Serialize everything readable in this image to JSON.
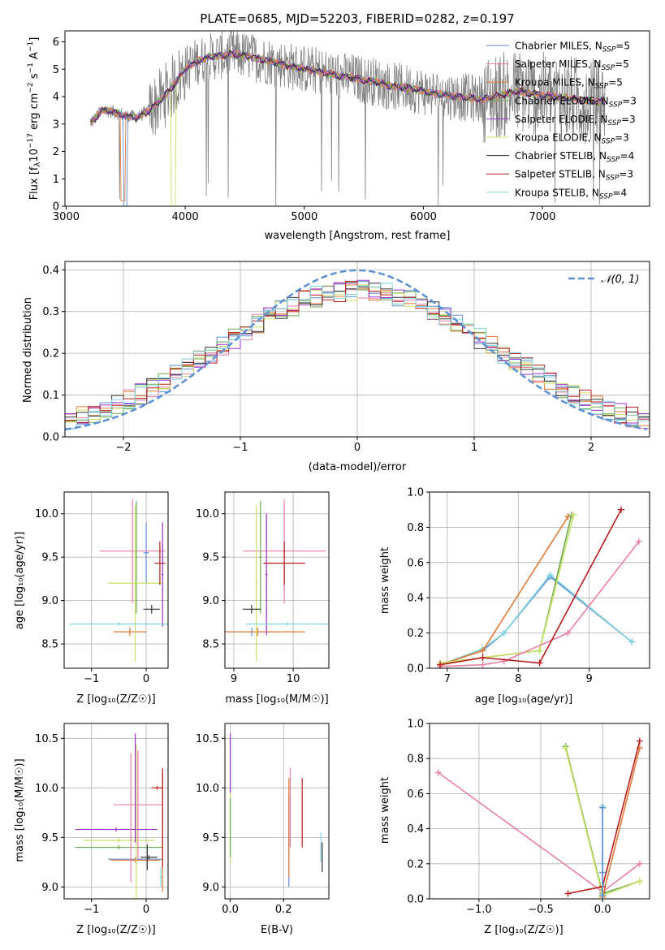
{
  "colors": {
    "chabrier_miles": "#5b8fd6",
    "salpeter_miles": "#e87fa8",
    "kroupa_miles": "#e07b39",
    "chabrier_elodie": "#6aa84f",
    "salpeter_elodie": "#9b30c9",
    "kroupa_elodie": "#c8e064",
    "chabrier_stelib": "#333333",
    "salpeter_stelib": "#b71c1c",
    "kroupa_stelib": "#7fd3dc",
    "data_spectrum": "#808080",
    "normal_curve": "#5b8fd6",
    "grid": "#b0b0b0"
  },
  "chart_data": [
    {
      "id": "spectrum",
      "type": "line",
      "title": "PLATE=0685, MJD=52203, FIBERID=0282, z=0.197",
      "xlabel": "wavelength [Angstrom, rest frame]",
      "ylabel_parts": [
        "Flux [f",
        "λ",
        "10",
        "−17",
        " erg cm",
        "−2",
        " s",
        "−1",
        " A",
        "−1",
        "]"
      ],
      "xlim": [
        2990,
        7900
      ],
      "ylim": [
        0,
        6.4
      ],
      "xticks": [
        "3000",
        "4000",
        "5000",
        "6000",
        "7000"
      ],
      "xtick_values": [
        3000,
        4000,
        5000,
        6000,
        7000
      ],
      "yticks": [
        "0",
        "1",
        "2",
        "3",
        "4",
        "5",
        "6"
      ],
      "ytick_values": [
        0,
        1,
        2,
        3,
        4,
        5,
        6
      ],
      "grid": false,
      "legend_position": "upper-right",
      "legend": [
        {
          "label": "Chabrier MILES, N",
          "sub": "SSP",
          "suffix": "=5"
        },
        {
          "label": "Salpeter MILES, N",
          "sub": "SSP",
          "suffix": "=5"
        },
        {
          "label": "Kroupa MILES, N",
          "sub": "SSP",
          "suffix": "=5"
        },
        {
          "label": "Chabrier ELODIE, N",
          "sub": "SSP",
          "suffix": "=3"
        },
        {
          "label": "Salpeter ELODIE, N",
          "sub": "SSP",
          "suffix": "=3"
        },
        {
          "label": "Kroupa ELODIE, N",
          "sub": "SSP",
          "suffix": "=3"
        },
        {
          "label": "Chabrier STELIB, N",
          "sub": "SSP",
          "suffix": "=4"
        },
        {
          "label": "Salpeter STELIB, N",
          "sub": "SSP",
          "suffix": "=3"
        },
        {
          "label": "Kroupa STELIB, N",
          "sub": "SSP",
          "suffix": "=4"
        }
      ],
      "continuum": {
        "x": [
          3200,
          3300,
          3400,
          3500,
          3600,
          3700,
          3800,
          3900,
          4000,
          4100,
          4200,
          4300,
          4400,
          4500,
          4600,
          4700,
          4800,
          4900,
          5000,
          5100,
          5200,
          5300,
          5400,
          5500,
          5600,
          5700,
          5800,
          5900,
          6000,
          6100,
          6200,
          6300,
          6400,
          6500,
          6600,
          6700,
          6800,
          6900,
          7000,
          7100,
          7200,
          7300,
          7400,
          7500
        ],
        "y": [
          3.0,
          3.5,
          3.45,
          3.3,
          3.25,
          3.5,
          3.9,
          4.4,
          5.0,
          5.3,
          5.45,
          5.5,
          5.55,
          5.5,
          5.4,
          5.3,
          5.2,
          5.1,
          5.0,
          4.95,
          4.85,
          4.75,
          4.7,
          4.6,
          4.55,
          4.4,
          4.35,
          4.3,
          4.2,
          4.1,
          4.05,
          4.0,
          3.95,
          3.9,
          4.0,
          4.1,
          4.2,
          4.1,
          4.05,
          4.0,
          3.95,
          3.9,
          3.85,
          3.8
        ]
      }
    },
    {
      "id": "residuals",
      "type": "line",
      "xlabel": "(data-model)/error",
      "ylabel": "Normed distribution",
      "xlim": [
        -2.5,
        2.5
      ],
      "ylim": [
        0,
        0.42
      ],
      "xticks": [
        "−2",
        "−1",
        "0",
        "1",
        "2"
      ],
      "xtick_values": [
        -2,
        -1,
        0,
        1,
        2
      ],
      "yticks": [
        "0.0",
        "0.1",
        "0.2",
        "0.3",
        "0.4"
      ],
      "ytick_values": [
        0,
        0.1,
        0.2,
        0.3,
        0.4
      ],
      "grid": true,
      "legend": "𝒩(0, 1)",
      "legend_position": "upper-right",
      "bin_width": 0.1
    },
    {
      "id": "age-vs-z",
      "type": "scatter",
      "xlabel": "Z [log₁₀(Z/Z☉)]",
      "ylabel": "age  [log₁₀(age/yr)]",
      "xlim": [
        -1.5,
        0.4
      ],
      "ylim": [
        8.22,
        10.25
      ],
      "xticks": [
        "−1",
        "0"
      ],
      "xtick_values": [
        -1,
        0
      ],
      "yticks": [
        "8.5",
        "9.0",
        "9.5",
        "10.0"
      ],
      "ytick_values": [
        8.5,
        9.0,
        9.5,
        10.0
      ],
      "grid": true,
      "points": [
        {
          "model": "chabrier_miles",
          "x": 0.0,
          "xerr": 0.05,
          "y": 9.55,
          "yerr": 0.35
        },
        {
          "model": "salpeter_miles",
          "x": -0.25,
          "xerr": 0.6,
          "y": 9.57,
          "yerr": 0.6
        },
        {
          "model": "kroupa_miles",
          "x": -0.3,
          "xerr": 0.3,
          "y": 8.64,
          "yerr": 0.05
        },
        {
          "model": "chabrier_elodie",
          "x": -0.18,
          "xerr": 0.02,
          "y": 9.5,
          "yerr": 0.65
        },
        {
          "model": "salpeter_elodie",
          "x": 0.3,
          "xerr": 0.02,
          "y": 9.3,
          "yerr": 0.6
        },
        {
          "model": "kroupa_elodie",
          "x": -0.2,
          "xerr": 0.5,
          "y": 9.2,
          "yerr": 0.9
        },
        {
          "model": "chabrier_stelib",
          "x": 0.1,
          "xerr": 0.15,
          "y": 8.9,
          "yerr": 0.05
        },
        {
          "model": "salpeter_stelib",
          "x": 0.25,
          "xerr": 0.1,
          "y": 9.43,
          "yerr": 0.25
        },
        {
          "model": "kroupa_stelib",
          "x": -0.5,
          "xerr": 0.9,
          "y": 8.73,
          "yerr": 0.02
        }
      ]
    },
    {
      "id": "age-vs-mass",
      "type": "scatter",
      "xlabel": "mass [log₁₀(M/M☉)]",
      "ylabel": "",
      "xlim": [
        8.85,
        10.6
      ],
      "ylim": [
        8.22,
        10.25
      ],
      "xticks": [
        "9",
        "10"
      ],
      "xtick_values": [
        9,
        10
      ],
      "yticks": [
        "8.5",
        "9.0",
        "9.5",
        "10.0"
      ],
      "ytick_values": [
        8.5,
        9.0,
        9.5,
        10.0
      ],
      "grid": true,
      "points": [
        {
          "model": "chabrier_miles",
          "x": 9.3,
          "xerr": 0.4,
          "y": 8.64,
          "yerr": 0.05
        },
        {
          "model": "salpeter_miles",
          "x": 9.85,
          "xerr": 0.7,
          "y": 9.57,
          "yerr": 0.6
        },
        {
          "model": "kroupa_miles",
          "x": 9.4,
          "xerr": 0.8,
          "y": 8.64,
          "yerr": 0.05
        },
        {
          "model": "chabrier_elodie",
          "x": 9.45,
          "xerr": 0.02,
          "y": 9.5,
          "yerr": 0.65
        },
        {
          "model": "salpeter_elodie",
          "x": 9.55,
          "xerr": 0.02,
          "y": 9.3,
          "yerr": 0.7
        },
        {
          "model": "kroupa_elodie",
          "x": 9.38,
          "xerr": 0.02,
          "y": 9.2,
          "yerr": 0.9
        },
        {
          "model": "chabrier_stelib",
          "x": 9.3,
          "xerr": 0.15,
          "y": 8.9,
          "yerr": 0.05
        },
        {
          "model": "salpeter_stelib",
          "x": 9.85,
          "xerr": 0.35,
          "y": 9.43,
          "yerr": 0.25
        },
        {
          "model": "kroupa_stelib",
          "x": 9.9,
          "xerr": 0.7,
          "y": 8.73,
          "yerr": 0.02
        }
      ]
    },
    {
      "id": "weight-vs-age",
      "type": "line",
      "xlabel": "age  [log₁₀(age/yr)]",
      "ylabel": "mass weight",
      "xlim": [
        6.75,
        9.85
      ],
      "ylim": [
        0,
        1.0
      ],
      "xticks": [
        "7",
        "8",
        "9"
      ],
      "xtick_values": [
        7,
        8,
        9
      ],
      "yticks": [
        "0.0",
        "0.2",
        "0.4",
        "0.6",
        "0.8",
        "1.0"
      ],
      "ytick_values": [
        0,
        0.2,
        0.4,
        0.6,
        0.8,
        1.0
      ],
      "grid": true,
      "series": [
        {
          "model": "chabrier_miles",
          "x": [
            6.9,
            7.5,
            7.8,
            8.45,
            9.6
          ],
          "y": [
            0.02,
            0.1,
            0.2,
            0.52,
            0.15
          ]
        },
        {
          "model": "kroupa_stelib",
          "x": [
            6.9,
            7.5,
            7.8,
            8.45,
            9.6
          ],
          "y": [
            0.02,
            0.11,
            0.2,
            0.53,
            0.15
          ]
        },
        {
          "model": "kroupa_miles",
          "x": [
            6.9,
            7.5,
            8.7
          ],
          "y": [
            0.02,
            0.1,
            0.86
          ]
        },
        {
          "model": "chabrier_elodie",
          "x": [
            6.9,
            8.3,
            8.75
          ],
          "y": [
            0.03,
            0.1,
            0.87
          ]
        },
        {
          "model": "kroupa_elodie",
          "x": [
            6.9,
            8.3,
            8.78
          ],
          "y": [
            0.03,
            0.1,
            0.87
          ]
        },
        {
          "model": "salpeter_miles",
          "x": [
            6.9,
            7.5,
            7.8,
            8.7,
            9.7
          ],
          "y": [
            0.01,
            0.02,
            0.04,
            0.2,
            0.72
          ]
        },
        {
          "model": "salpeter_stelib",
          "x": [
            6.9,
            7.5,
            8.3,
            9.45
          ],
          "y": [
            0.02,
            0.06,
            0.03,
            0.9
          ]
        }
      ]
    },
    {
      "id": "mass-vs-z",
      "type": "scatter",
      "xlabel": "Z [log₁₀(Z/Z☉)]",
      "ylabel": "mass [log₁₀(M/M☉)]",
      "xlim": [
        -1.5,
        0.4
      ],
      "ylim": [
        8.88,
        10.65
      ],
      "xticks": [
        "−1",
        "0"
      ],
      "xtick_values": [
        -1,
        0
      ],
      "yticks": [
        "9.0",
        "9.5",
        "10.0",
        "10.5"
      ],
      "ytick_values": [
        9.0,
        9.5,
        10.0,
        10.5
      ],
      "grid": true,
      "points": [
        {
          "model": "chabrier_miles",
          "x": -0.2,
          "xerr": 0.5,
          "y": 9.28,
          "yerr": 0.02
        },
        {
          "model": "salpeter_miles",
          "x": -0.15,
          "xerr": 0.45,
          "y": 9.83,
          "yerr": 0.55
        },
        {
          "model": "kroupa_miles",
          "x": -0.2,
          "xerr": 0.45,
          "y": 9.27,
          "yerr": 0.02
        },
        {
          "model": "chabrier_elodie",
          "x": -0.5,
          "xerr": 0.8,
          "y": 9.4,
          "yerr": 0.02
        },
        {
          "model": "salpeter_elodie",
          "x": -0.55,
          "xerr": 0.75,
          "y": 9.58,
          "yerr": 0.02
        },
        {
          "model": "kroupa_elodie",
          "x": -0.5,
          "xerr": 0.65,
          "y": 9.47,
          "yerr": 0.02
        },
        {
          "model": "chabrier_stelib",
          "x": 0.05,
          "xerr": 0.15,
          "y": 9.3,
          "yerr": 0.02
        },
        {
          "model": "salpeter_stelib",
          "x": 0.2,
          "xerr": 0.1,
          "y": 10.0,
          "yerr": 0.02
        },
        {
          "model": "kroupa_stelib",
          "x": 0.27,
          "xerr": 0.02,
          "y": 9.1,
          "yerr": 0.1
        }
      ],
      "vbars": [
        {
          "model": "salpeter_miles",
          "x": -0.28,
          "y": 9.7,
          "yerr": 0.65
        },
        {
          "model": "kroupa_elodie",
          "x": -0.18,
          "y": 9.55,
          "yerr": 0.9
        },
        {
          "model": "salpeter_elodie",
          "x": -0.2,
          "y": 10.0,
          "yerr": 0.55
        },
        {
          "model": "chabrier_stelib",
          "x": 0.02,
          "y": 9.3,
          "yerr": 0.13
        },
        {
          "model": "kroupa_miles",
          "x": 0.3,
          "y": 9.55,
          "yerr": 0.6
        },
        {
          "model": "salpeter_stelib",
          "x": 0.3,
          "y": 9.7,
          "yerr": 0.5
        }
      ]
    },
    {
      "id": "mass-vs-ebv",
      "type": "scatter",
      "xlabel": "E(B-V)",
      "ylabel": "",
      "xlim": [
        -0.02,
        0.37
      ],
      "ylim": [
        8.88,
        10.65
      ],
      "xticks": [
        "0.0",
        "0.2"
      ],
      "xtick_values": [
        0.0,
        0.2
      ],
      "yticks": [
        "9.0",
        "9.5",
        "10.0",
        "10.5"
      ],
      "ytick_values": [
        9.0,
        9.5,
        10.0,
        10.5
      ],
      "grid": true,
      "vbars": [
        {
          "model": "kroupa_elodie",
          "x": 0.0,
          "y": 9.9,
          "yerr": 0.65
        },
        {
          "model": "salpeter_elodie",
          "x": 0.0,
          "y": 10.25,
          "yerr": 0.3
        },
        {
          "model": "chabrier_elodie",
          "x": 0.0,
          "y": 9.6,
          "yerr": 0.3
        },
        {
          "model": "chabrier_miles",
          "x": 0.22,
          "y": 9.45,
          "yerr": 0.45
        },
        {
          "model": "kroupa_miles",
          "x": 0.22,
          "y": 9.6,
          "yerr": 0.5
        },
        {
          "model": "salpeter_miles",
          "x": 0.225,
          "y": 9.8,
          "yerr": 0.4
        },
        {
          "model": "salpeter_stelib",
          "x": 0.27,
          "y": 9.75,
          "yerr": 0.35
        },
        {
          "model": "kroupa_stelib",
          "x": 0.34,
          "y": 9.4,
          "yerr": 0.15
        },
        {
          "model": "chabrier_stelib",
          "x": 0.345,
          "y": 9.3,
          "yerr": 0.15
        }
      ]
    },
    {
      "id": "weight-vs-z",
      "type": "line",
      "xlabel": "Z [log₁₀(Z/Z☉)]",
      "ylabel": "mass weight",
      "xlim": [
        -1.4,
        0.38
      ],
      "ylim": [
        0,
        1.0
      ],
      "xticks": [
        "−1.0",
        "−0.5",
        "0.0"
      ],
      "xtick_values": [
        -1.0,
        -0.5,
        0.0
      ],
      "yticks": [
        "0.0",
        "0.2",
        "0.4",
        "0.6",
        "0.8",
        "1.0"
      ],
      "ytick_values": [
        0,
        0.2,
        0.4,
        0.6,
        0.8,
        1.0
      ],
      "grid": true,
      "series": [
        {
          "model": "salpeter_miles",
          "x": [
            -1.33,
            0.0,
            0.3
          ],
          "y": [
            0.72,
            0.04,
            0.2
          ]
        },
        {
          "model": "chabrier_elodie",
          "x": [
            -0.3,
            0.0,
            0.3
          ],
          "y": [
            0.87,
            0.03,
            0.1
          ]
        },
        {
          "model": "kroupa_elodie",
          "x": [
            -0.3,
            0.0,
            0.3
          ],
          "y": [
            0.86,
            0.02,
            0.1
          ]
        },
        {
          "model": "kroupa_miles",
          "x": [
            0.0,
            0.3
          ],
          "y": [
            0.01,
            0.86
          ]
        },
        {
          "model": "salpeter_stelib",
          "x": [
            -0.28,
            0.0,
            0.3
          ],
          "y": [
            0.03,
            0.07,
            0.9
          ]
        },
        {
          "model": "kroupa_stelib",
          "x": [
            0.0,
            0.0,
            0.0
          ],
          "y": [
            0.53,
            0.2,
            0.02
          ]
        },
        {
          "model": "chabrier_miles",
          "x": [
            0.0,
            0.0,
            0.0
          ],
          "y": [
            0.52,
            0.15,
            0.02
          ]
        }
      ]
    }
  ]
}
